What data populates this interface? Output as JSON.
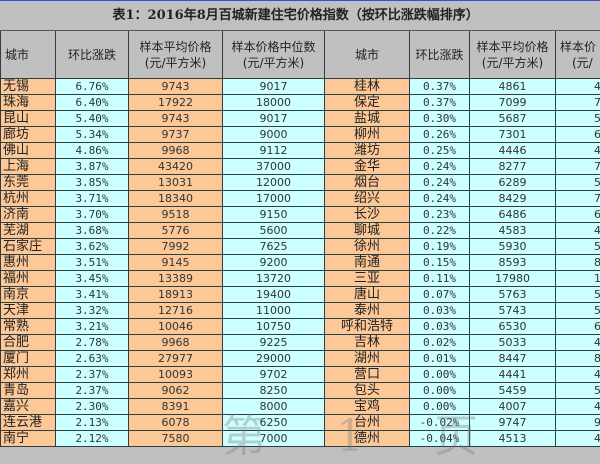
{
  "title": "表1：2016年8月百城新建住宅价格指数（按环比涨跌幅排序）",
  "headers": [
    "城市",
    "环比涨跌",
    "样本平均价格（元/平方米）",
    "样本价格中位数（元/平方米）",
    "城市",
    "环比涨跌",
    "样本平均价格（元/平方米）",
    "样本价（元/"
  ],
  "header_lines": {
    "avg_l1": "样本平均价格",
    "avg_l2": "(元/平方米)",
    "med_l1": "样本价格中位数",
    "med_l2": "(元/平方米)",
    "cut_l1": "样本价",
    "cut_l2": "(元/"
  },
  "left_rows": [
    {
      "city": "无锡",
      "pct": "6.76%",
      "avg": "9743",
      "median": "9017"
    },
    {
      "city": "珠海",
      "pct": "6.40%",
      "avg": "17922",
      "median": "18000"
    },
    {
      "city": "昆山",
      "pct": "5.40%",
      "avg": "9743",
      "median": "9017"
    },
    {
      "city": "廊坊",
      "pct": "5.34%",
      "avg": "9737",
      "median": "9000"
    },
    {
      "city": "佛山",
      "pct": "4.86%",
      "avg": "9968",
      "median": "9112"
    },
    {
      "city": "上海",
      "pct": "3.87%",
      "avg": "43420",
      "median": "37000"
    },
    {
      "city": "东莞",
      "pct": "3.85%",
      "avg": "13031",
      "median": "12000"
    },
    {
      "city": "杭州",
      "pct": "3.71%",
      "avg": "18340",
      "median": "17000"
    },
    {
      "city": "济南",
      "pct": "3.70%",
      "avg": "9518",
      "median": "9150"
    },
    {
      "city": "芜湖",
      "pct": "3.68%",
      "avg": "5776",
      "median": "5600"
    },
    {
      "city": "石家庄",
      "pct": "3.62%",
      "avg": "7992",
      "median": "7625"
    },
    {
      "city": "惠州",
      "pct": "3.51%",
      "avg": "9145",
      "median": "9200"
    },
    {
      "city": "福州",
      "pct": "3.45%",
      "avg": "13389",
      "median": "13720"
    },
    {
      "city": "南京",
      "pct": "3.41%",
      "avg": "18913",
      "median": "19400"
    },
    {
      "city": "天津",
      "pct": "3.32%",
      "avg": "12716",
      "median": "11000"
    },
    {
      "city": "常熟",
      "pct": "3.21%",
      "avg": "10046",
      "median": "10750"
    },
    {
      "city": "合肥",
      "pct": "2.78%",
      "avg": "9968",
      "median": "9225"
    },
    {
      "city": "厦门",
      "pct": "2.63%",
      "avg": "27977",
      "median": "29000"
    },
    {
      "city": "郑州",
      "pct": "2.37%",
      "avg": "10093",
      "median": "9702"
    },
    {
      "city": "青岛",
      "pct": "2.37%",
      "avg": "9062",
      "median": "8250"
    },
    {
      "city": "嘉兴",
      "pct": "2.30%",
      "avg": "8391",
      "median": "8000"
    },
    {
      "city": "连云港",
      "pct": "2.13%",
      "avg": "6078",
      "median": "6250"
    },
    {
      "city": "南宁",
      "pct": "2.12%",
      "avg": "7580",
      "median": "7000"
    }
  ],
  "right_rows": [
    {
      "city": "桂林",
      "pct": "0.37%",
      "avg": "4861",
      "median_partial": "4"
    },
    {
      "city": "保定",
      "pct": "0.37%",
      "avg": "7099",
      "median_partial": "7"
    },
    {
      "city": "盐城",
      "pct": "0.30%",
      "avg": "5687",
      "median_partial": "5"
    },
    {
      "city": "柳州",
      "pct": "0.26%",
      "avg": "7301",
      "median_partial": "6"
    },
    {
      "city": "潍坊",
      "pct": "0.25%",
      "avg": "4446",
      "median_partial": "4"
    },
    {
      "city": "金华",
      "pct": "0.24%",
      "avg": "8277",
      "median_partial": "7"
    },
    {
      "city": "烟台",
      "pct": "0.24%",
      "avg": "6289",
      "median_partial": "5"
    },
    {
      "city": "绍兴",
      "pct": "0.24%",
      "avg": "8429",
      "median_partial": "7"
    },
    {
      "city": "长沙",
      "pct": "0.23%",
      "avg": "6486",
      "median_partial": "6"
    },
    {
      "city": "聊城",
      "pct": "0.22%",
      "avg": "4583",
      "median_partial": "4"
    },
    {
      "city": "徐州",
      "pct": "0.19%",
      "avg": "5930",
      "median_partial": "5"
    },
    {
      "city": "南通",
      "pct": "0.15%",
      "avg": "8593",
      "median_partial": "8"
    },
    {
      "city": "三亚",
      "pct": "0.11%",
      "avg": "17980",
      "median_partial": "1"
    },
    {
      "city": "唐山",
      "pct": "0.07%",
      "avg": "5763",
      "median_partial": "5"
    },
    {
      "city": "泰州",
      "pct": "0.03%",
      "avg": "5743",
      "median_partial": "5"
    },
    {
      "city": "呼和浩特",
      "pct": "0.03%",
      "avg": "6530",
      "median_partial": "6"
    },
    {
      "city": "吉林",
      "pct": "0.02%",
      "avg": "5033",
      "median_partial": "4"
    },
    {
      "city": "湖州",
      "pct": "0.01%",
      "avg": "8447",
      "median_partial": "8"
    },
    {
      "city": "营口",
      "pct": "0.00%",
      "avg": "4441",
      "median_partial": "4"
    },
    {
      "city": "包头",
      "pct": "0.00%",
      "avg": "5459",
      "median_partial": "5"
    },
    {
      "city": "宝鸡",
      "pct": "0.00%",
      "avg": "4007",
      "median_partial": "4"
    },
    {
      "city": "台州",
      "pct": "-0.02%",
      "avg": "9747",
      "median_partial": "9"
    },
    {
      "city": "德州",
      "pct": "-0.04%",
      "avg": "4513",
      "median_partial": "4"
    }
  ],
  "watermark": "第 1 页",
  "colors": {
    "city_bg": "#fcc897",
    "value_bg": "#ccffff",
    "header_bg": "#c0c0c0"
  }
}
